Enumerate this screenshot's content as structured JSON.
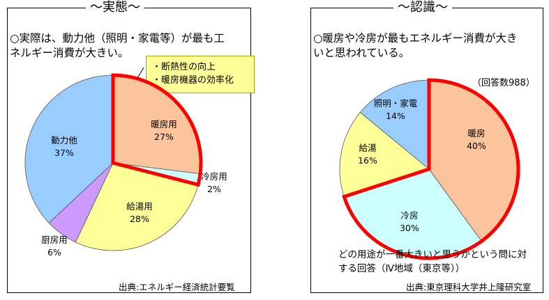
{
  "left": {
    "title": "～実態～",
    "lead": "○実際は、動力他（照明・家電等）が最も工\nネルギー消費が大きい。",
    "callout": [
      "・断熱性の向上",
      "・暖房機器の効率化"
    ],
    "source": "出典:エネルギー経済統計要覧"
  },
  "right": {
    "title": "～認識～",
    "lead": "○暖房や冷房が最もエネルギー消費が大き\nいと思われている。",
    "respondents": "（回答数988）",
    "footnote": "どの用途が一番大きいと思うかという問に対\nする回答（Ⅳ地域（東京等））",
    "source": "出典:東京理科大学井上隆研究室"
  },
  "chart_data": [
    {
      "type": "pie",
      "title": "～実態～",
      "unit": "%",
      "slices": [
        {
          "label": "暖房用",
          "value": 27,
          "color": "#fbc49c",
          "highlight": true
        },
        {
          "label": "冷房用",
          "value": 2,
          "color": "#ccffff",
          "highlight": true
        },
        {
          "label": "給湯用",
          "value": 28,
          "color": "#ffff99",
          "highlight": false
        },
        {
          "label": "厨房用",
          "value": 6,
          "color": "#cc99ff",
          "highlight": false
        },
        {
          "label": "動力他",
          "value": 37,
          "color": "#99ccff",
          "highlight": false
        }
      ],
      "highlight_color": "#ff0000"
    },
    {
      "type": "pie",
      "title": "～認識～",
      "unit": "%",
      "slices": [
        {
          "label": "暖房",
          "value": 40,
          "color": "#fbc49c",
          "highlight": true
        },
        {
          "label": "冷房",
          "value": 30,
          "color": "#ccffff",
          "highlight": true
        },
        {
          "label": "給湯",
          "value": 16,
          "color": "#ffff99",
          "highlight": false
        },
        {
          "label": "照明・家電",
          "value": 14,
          "color": "#99ccff",
          "highlight": false
        }
      ],
      "highlight_color": "#ff0000"
    }
  ]
}
